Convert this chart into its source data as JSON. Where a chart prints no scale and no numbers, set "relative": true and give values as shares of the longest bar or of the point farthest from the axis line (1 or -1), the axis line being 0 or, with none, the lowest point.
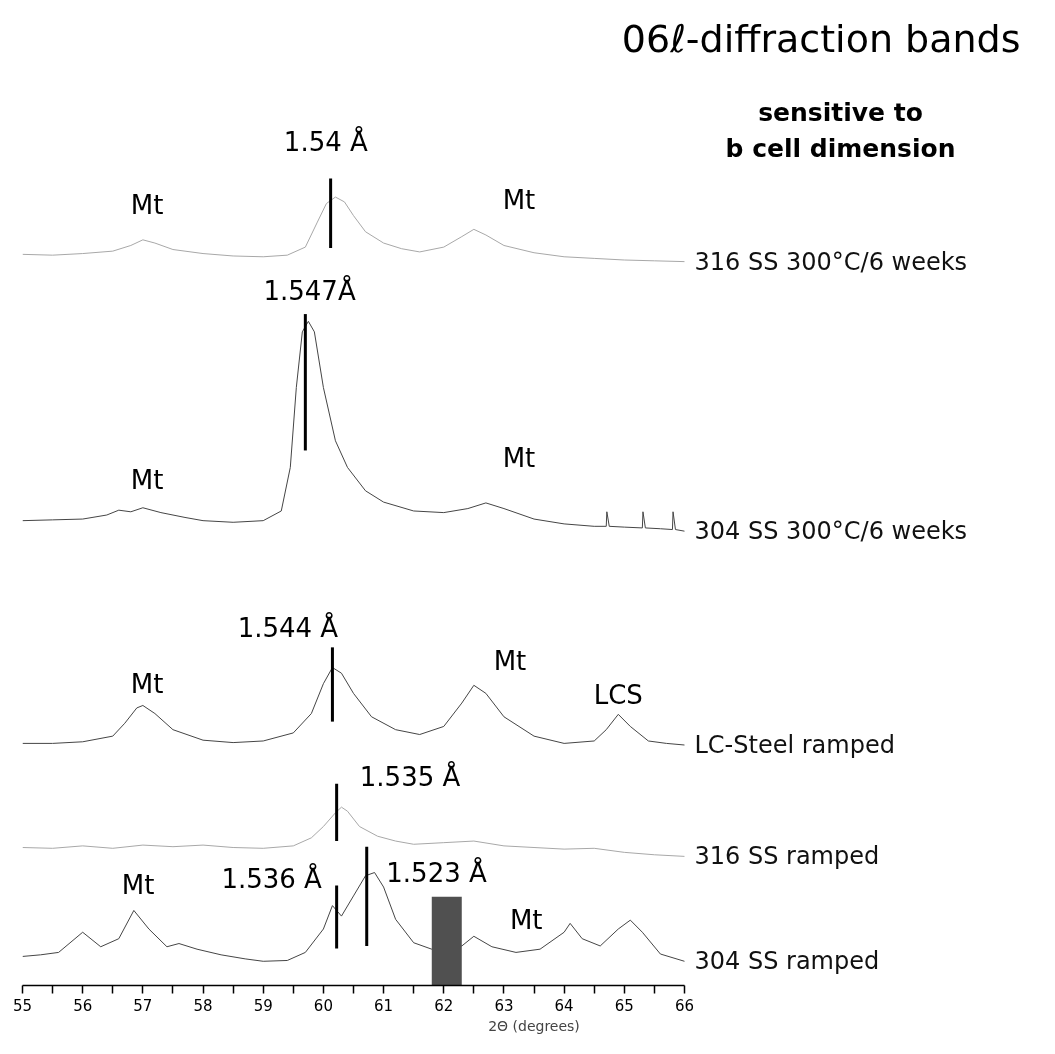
{
  "chart_data": {
    "type": "line",
    "relative": true,
    "title": "06ℓ-diffraction bands",
    "subtitle": "sensitive to\nb cell dimension",
    "xlabel": "2Θ (degrees)",
    "xlim": [
      55,
      66
    ],
    "xticks": [
      55,
      {
        "value": 55.5,
        "label": null
      },
      56,
      {
        "value": 56.5,
        "label": null
      },
      57,
      {
        "value": 57.5,
        "label": null
      },
      58,
      {
        "value": 58.5,
        "label": null
      },
      59,
      {
        "value": 59.5,
        "label": null
      },
      60,
      {
        "value": 60.5,
        "label": null
      },
      61,
      {
        "value": 61.5,
        "label": null
      },
      62,
      {
        "value": 62.5,
        "label": null
      },
      63,
      {
        "value": 63.5,
        "label": null
      },
      64,
      {
        "value": 64.5,
        "label": null
      },
      65,
      {
        "value": 65.5,
        "label": null
      },
      66
    ],
    "series": [
      {
        "name": "316 SS 300°C/6 weeks",
        "color": "#a8a8a8",
        "x": [
          55,
          55.5,
          56,
          56.5,
          56.8,
          57.0,
          57.2,
          57.5,
          58,
          58.5,
          59,
          59.4,
          59.7,
          59.9,
          60.05,
          60.2,
          60.35,
          60.5,
          60.7,
          61,
          61.3,
          61.6,
          62,
          62.3,
          62.5,
          62.7,
          63,
          63.5,
          64,
          64.5,
          65,
          65.5,
          66
        ],
        "values": [
          0.906,
          0.905,
          0.907,
          0.91,
          0.917,
          0.924,
          0.92,
          0.912,
          0.907,
          0.904,
          0.903,
          0.905,
          0.915,
          0.946,
          0.969,
          0.977,
          0.971,
          0.954,
          0.934,
          0.92,
          0.913,
          0.909,
          0.915,
          0.928,
          0.937,
          0.93,
          0.917,
          0.908,
          0.903,
          0.901,
          0.899,
          0.898,
          0.897
        ]
      },
      {
        "name": "304 SS 300°C/6 weeks",
        "color": "#454545",
        "x": [
          55,
          55.5,
          56,
          56.4,
          56.6,
          56.8,
          57.0,
          57.3,
          57.7,
          58,
          58.5,
          59,
          59.3,
          59.45,
          59.55,
          59.65,
          59.75,
          59.85,
          60.0,
          60.2,
          60.4,
          60.7,
          61,
          61.5,
          62,
          62.4,
          62.7,
          63,
          63.5,
          64,
          64.5,
          64.7,
          64.71,
          64.75,
          65,
          65.3,
          65.31,
          65.35,
          65.6,
          65.8,
          65.81,
          65.85,
          66
        ],
        "values": [
          0.576,
          0.577,
          0.578,
          0.583,
          0.589,
          0.587,
          0.592,
          0.586,
          0.58,
          0.576,
          0.574,
          0.576,
          0.588,
          0.642,
          0.741,
          0.81,
          0.823,
          0.81,
          0.741,
          0.675,
          0.642,
          0.613,
          0.599,
          0.588,
          0.586,
          0.591,
          0.598,
          0.591,
          0.578,
          0.572,
          0.569,
          0.569,
          0.587,
          0.569,
          0.568,
          0.567,
          0.587,
          0.567,
          0.566,
          0.565,
          0.587,
          0.565,
          0.563
        ]
      },
      {
        "name": "LC-Steel ramped",
        "color": "#454545",
        "x": [
          55,
          55.5,
          56,
          56.5,
          56.7,
          56.9,
          57.0,
          57.2,
          57.5,
          58,
          58.5,
          59,
          59.5,
          59.8,
          60.0,
          60.15,
          60.3,
          60.5,
          60.8,
          61.2,
          61.6,
          62,
          62.3,
          62.5,
          62.7,
          63,
          63.5,
          64,
          64.5,
          64.7,
          64.9,
          65.1,
          65.4,
          65.7,
          66
        ],
        "values": [
          0.3,
          0.3,
          0.302,
          0.309,
          0.325,
          0.344,
          0.347,
          0.337,
          0.317,
          0.304,
          0.301,
          0.303,
          0.313,
          0.337,
          0.374,
          0.394,
          0.387,
          0.362,
          0.333,
          0.317,
          0.311,
          0.321,
          0.35,
          0.372,
          0.362,
          0.333,
          0.309,
          0.3,
          0.303,
          0.317,
          0.336,
          0.321,
          0.303,
          0.3,
          0.298
        ]
      },
      {
        "name": "316 SS ramped",
        "color": "#a8a8a8",
        "x": [
          55,
          55.5,
          56,
          56.5,
          57,
          57.5,
          58,
          58.5,
          59,
          59.5,
          59.8,
          60.0,
          60.2,
          60.3,
          60.4,
          60.6,
          60.9,
          61.2,
          61.5,
          62,
          62.5,
          63,
          63.5,
          64,
          64.5,
          65,
          65.5,
          66
        ],
        "values": [
          0.171,
          0.17,
          0.173,
          0.17,
          0.174,
          0.172,
          0.174,
          0.171,
          0.17,
          0.173,
          0.183,
          0.197,
          0.214,
          0.221,
          0.216,
          0.197,
          0.185,
          0.179,
          0.175,
          0.177,
          0.179,
          0.173,
          0.171,
          0.169,
          0.17,
          0.165,
          0.162,
          0.16
        ]
      },
      {
        "name": "304 SS ramped",
        "color": "#454545",
        "x": [
          55,
          55.3,
          55.6,
          56.0,
          56.3,
          56.6,
          56.85,
          57.1,
          57.4,
          57.6,
          57.9,
          58.3,
          58.7,
          59,
          59.4,
          59.7,
          60.0,
          60.15,
          60.3,
          60.5,
          60.7,
          60.85,
          61.0,
          61.2,
          61.5,
          61.8,
          62.3,
          62.5,
          62.8,
          63.2,
          63.6,
          64.0,
          64.1,
          64.3,
          64.6,
          64.9,
          65.1,
          65.3,
          65.6,
          66
        ],
        "values": [
          0.036,
          0.038,
          0.041,
          0.066,
          0.048,
          0.058,
          0.093,
          0.07,
          0.048,
          0.052,
          0.045,
          0.038,
          0.033,
          0.03,
          0.031,
          0.041,
          0.07,
          0.099,
          0.086,
          0.111,
          0.136,
          0.14,
          0.122,
          0.082,
          0.053,
          0.045,
          0.049,
          0.061,
          0.048,
          0.041,
          0.045,
          0.066,
          0.077,
          0.058,
          0.049,
          0.07,
          0.081,
          0.066,
          0.039,
          0.03
        ]
      },
      {
        "type": "line",
        "color": "#000000",
        "x": [
          60.12,
          60.12
        ],
        "values": [
          0.914,
          1.0
        ]
      },
      {
        "type": "line",
        "color": "#000000",
        "x": [
          59.7,
          59.7
        ],
        "values": [
          0.663,
          0.832
        ]
      },
      {
        "type": "line",
        "color": "#000000",
        "x": [
          60.15,
          60.15
        ],
        "values": [
          0.327,
          0.419
        ]
      },
      {
        "type": "line",
        "color": "#000000",
        "x": [
          60.22,
          60.22
        ],
        "values": [
          0.179,
          0.25
        ]
      },
      {
        "type": "line",
        "color": "#000000",
        "x": [
          60.22,
          60.22
        ],
        "values": [
          0.046,
          0.124
        ]
      },
      {
        "type": "line",
        "color": "#000000",
        "x": [
          60.72,
          60.72
        ],
        "values": [
          0.049,
          0.172
        ]
      },
      {
        "type": "bar",
        "color": "#505050",
        "x": [
          62.05
        ],
        "values": [
          0.11
        ]
      }
    ],
    "annotations": [
      "1.54 Å",
      "Mt",
      "Mt",
      "1.547Å",
      "Mt",
      "Mt",
      "1.544 Å",
      "Mt",
      "Mt",
      "LCS",
      "1.535 Å",
      "1.536 Å",
      "1.523 Å",
      "Mt",
      "Mt"
    ]
  }
}
